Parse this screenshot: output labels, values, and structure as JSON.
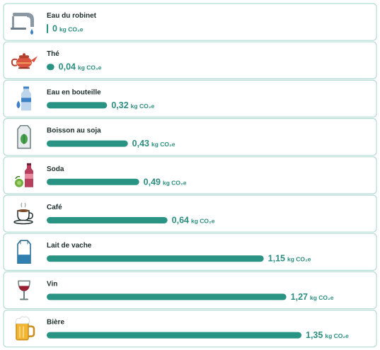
{
  "chart_data": {
    "type": "bar",
    "orientation": "horizontal",
    "categories": [
      "Eau du robinet",
      "Thé",
      "Eau en bouteille",
      "Boisson au soja",
      "Soda",
      "Café",
      "Lait de vache",
      "Vin",
      "Bière"
    ],
    "values": [
      0,
      0.04,
      0.32,
      0.43,
      0.49,
      0.64,
      1.15,
      1.27,
      1.35
    ],
    "value_labels": [
      "0",
      "0,04",
      "0,32",
      "0,43",
      "0,49",
      "0,64",
      "1,15",
      "1,27",
      "1,35"
    ],
    "unit": "kg CO₂e",
    "icons": [
      "faucet-icon",
      "teapot-icon",
      "water-bottle-icon",
      "soy-milk-carton-icon",
      "soda-bottle-icon",
      "coffee-cup-icon",
      "milk-carton-icon",
      "wine-glass-icon",
      "beer-mug-icon"
    ],
    "xlim": [
      0,
      1.35
    ],
    "grid": false,
    "legend": "none",
    "colors": {
      "bar": "#2a9484",
      "border": "#b4dbd3",
      "label": "#1f2f2c",
      "value": "#2c8e80"
    }
  }
}
